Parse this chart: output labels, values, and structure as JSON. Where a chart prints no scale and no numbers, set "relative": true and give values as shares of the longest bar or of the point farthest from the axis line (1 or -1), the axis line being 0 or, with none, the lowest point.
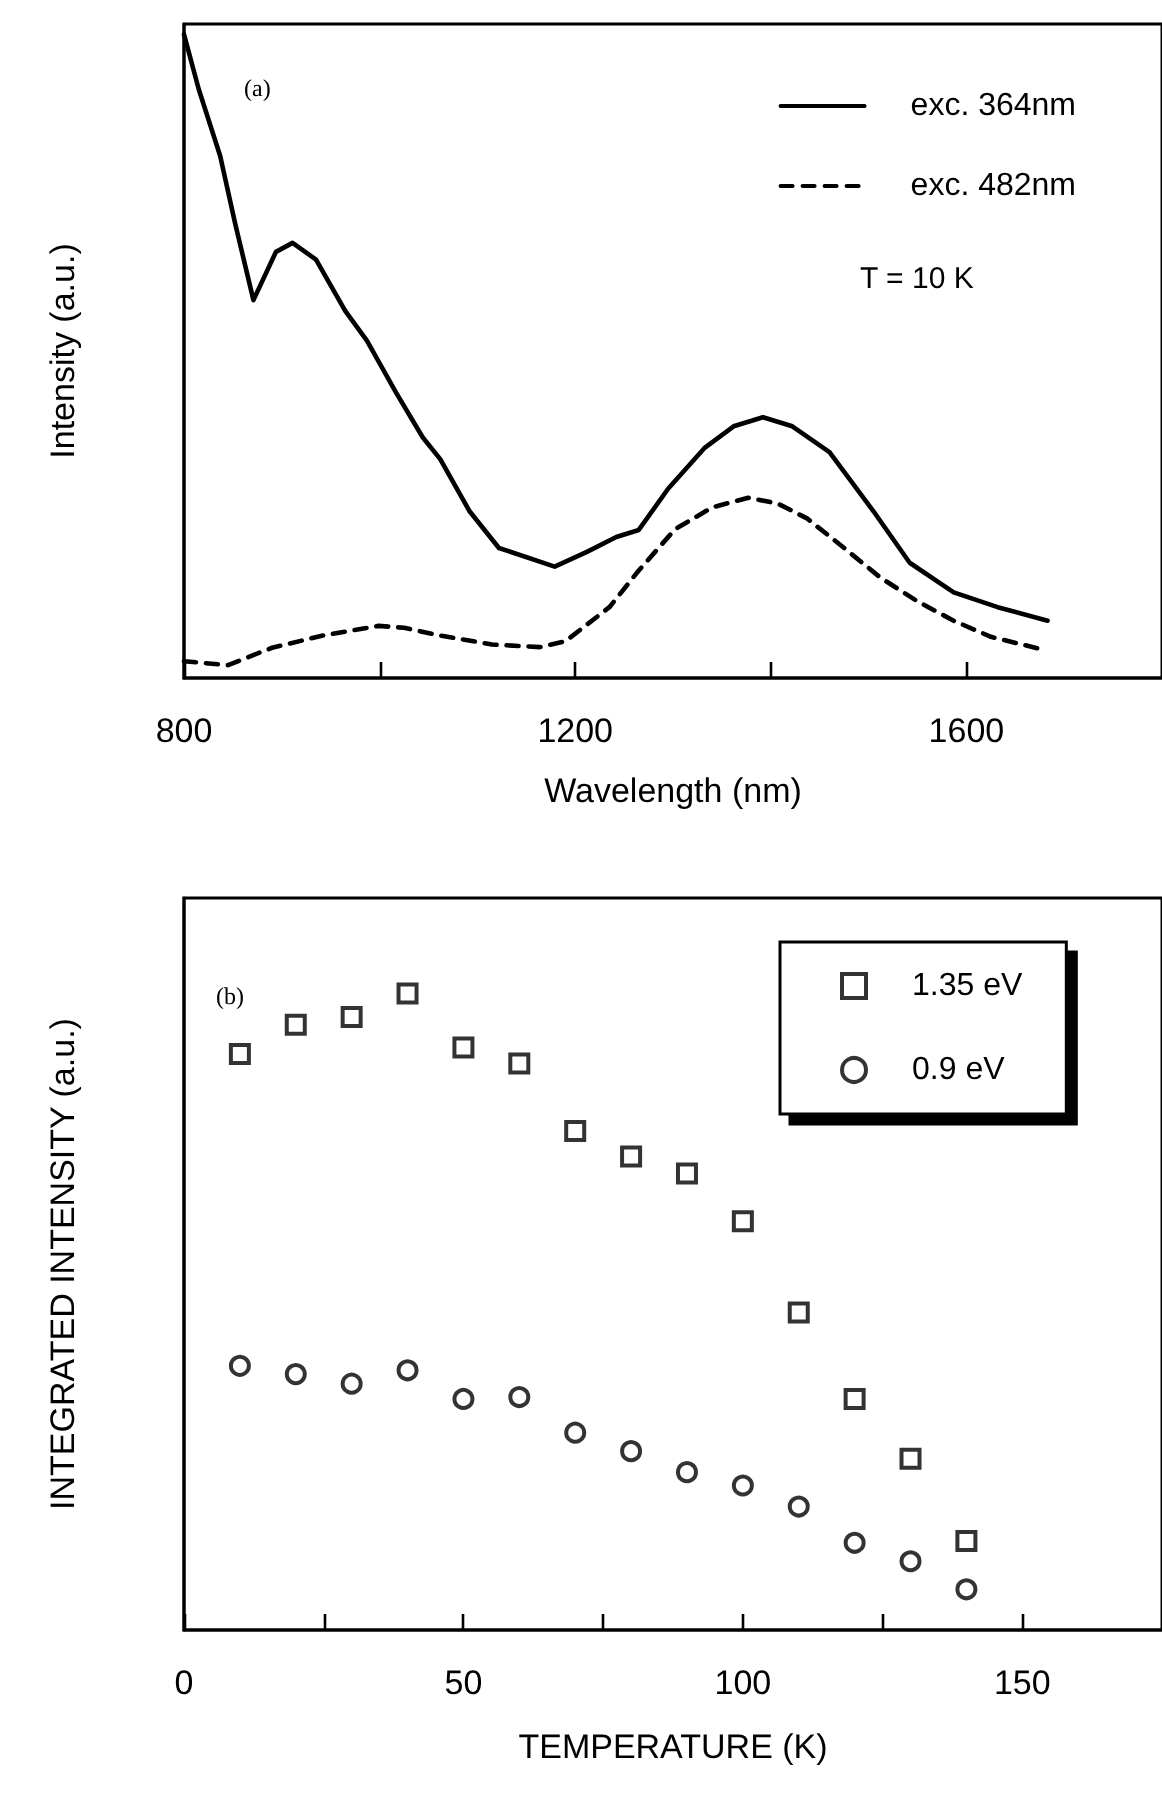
{
  "chart_data": [
    {
      "type": "line",
      "xlabel": "Wavelength (nm)",
      "ylabel": "Intensity (a.u.)",
      "relative": true,
      "legend": "top right",
      "marker": "none",
      "grid": false,
      "xlim": [
        800,
        1800
      ],
      "xticks": [
        800,
        {
          "value": 1000,
          "label": null
        },
        1200,
        {
          "value": 1400,
          "label": null
        },
        1600,
        {
          "value": 1800,
          "label": null
        }
      ],
      "annotations": [
        "(a)",
        "T = 10 K"
      ],
      "series": [
        {
          "name": "exc. 364nm",
          "color": "#000000",
          "line_style": "solid",
          "x": [
            800,
            815,
            837,
            852,
            871,
            894,
            911,
            935,
            965,
            987,
            1017,
            1044,
            1062,
            1092,
            1122,
            1179,
            1212,
            1242,
            1265,
            1295,
            1332,
            1362,
            1392,
            1422,
            1460,
            1505,
            1542,
            1587,
            1632,
            1683
          ],
          "values": [
            1.0,
            0.915,
            0.811,
            0.708,
            0.587,
            0.662,
            0.676,
            0.65,
            0.57,
            0.524,
            0.443,
            0.374,
            0.34,
            0.259,
            0.202,
            0.173,
            0.196,
            0.219,
            0.23,
            0.294,
            0.357,
            0.391,
            0.405,
            0.391,
            0.351,
            0.259,
            0.179,
            0.133,
            0.11,
            0.089
          ]
        },
        {
          "name": "exc. 482nm",
          "color": "#000000",
          "line_style": "dashed",
          "x": [
            800,
            845,
            890,
            942,
            999,
            1025,
            1062,
            1115,
            1164,
            1190,
            1212,
            1235,
            1265,
            1302,
            1340,
            1377,
            1407,
            1437,
            1475,
            1512,
            1550,
            1587,
            1625,
            1673
          ],
          "values": [
            0.026,
            0.02,
            0.047,
            0.066,
            0.081,
            0.078,
            0.066,
            0.052,
            0.048,
            0.057,
            0.083,
            0.11,
            0.167,
            0.231,
            0.265,
            0.28,
            0.271,
            0.248,
            0.202,
            0.156,
            0.119,
            0.089,
            0.064,
            0.046
          ]
        }
      ]
    },
    {
      "type": "scatter",
      "xlabel": "TEMPERATURE (K)",
      "ylabel": "INTEGRATED INTENSITY (a.u.)",
      "relative": true,
      "legend": "top right",
      "grid": false,
      "xlim": [
        0,
        175
      ],
      "xticks": [
        0,
        {
          "value": 25,
          "label": null
        },
        50,
        {
          "value": 75,
          "label": null
        },
        100,
        {
          "value": 125,
          "label": null
        },
        150,
        {
          "value": 175,
          "label": null
        }
      ],
      "annotations": [
        "(b)"
      ],
      "x": [
        10,
        20,
        30,
        40,
        50,
        60,
        70,
        80,
        90,
        100,
        110,
        120,
        130,
        140
      ],
      "series": [
        {
          "name": "1.35 eV",
          "color": "#000000",
          "marker": "square",
          "values": [
            0.905,
            0.951,
            0.963,
            1.0,
            0.915,
            0.89,
            0.784,
            0.744,
            0.717,
            0.642,
            0.499,
            0.363,
            0.269,
            0.14
          ]
        },
        {
          "name": "0.9 eV",
          "color": "#000000",
          "marker": "circle",
          "values": [
            0.415,
            0.402,
            0.387,
            0.408,
            0.363,
            0.366,
            0.31,
            0.281,
            0.248,
            0.227,
            0.194,
            0.137,
            0.108,
            0.064
          ]
        }
      ]
    }
  ]
}
